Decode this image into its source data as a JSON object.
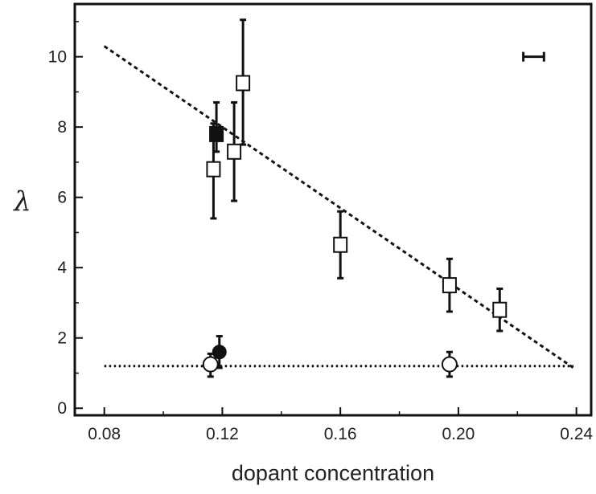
{
  "chart_data": {
    "type": "scatter",
    "title": "",
    "xlabel": "dopant concentration",
    "ylabel": "λ",
    "xlim": [
      0.07,
      0.245
    ],
    "ylim": [
      -0.2,
      11.5
    ],
    "xticks": [
      "0.08",
      "0.12",
      "0.16",
      "0.20",
      "0.24"
    ],
    "yticks": [
      "0",
      "2",
      "4",
      "6",
      "8",
      "10"
    ],
    "grid": false,
    "series": [
      {
        "marker": "open-square",
        "points": [
          {
            "x": 0.117,
            "y": 6.8,
            "ylow": 5.4,
            "yhigh": 8.1
          },
          {
            "x": 0.124,
            "y": 7.3,
            "ylow": 5.9,
            "yhigh": 8.7
          },
          {
            "x": 0.127,
            "y": 9.25,
            "ylow": 7.5,
            "yhigh": 11.05
          },
          {
            "x": 0.16,
            "y": 4.65,
            "ylow": 3.7,
            "yhigh": 5.6
          },
          {
            "x": 0.197,
            "y": 3.5,
            "ylow": 2.75,
            "yhigh": 4.25
          },
          {
            "x": 0.214,
            "y": 2.8,
            "ylow": 2.2,
            "yhigh": 3.4
          }
        ]
      },
      {
        "marker": "filled-square",
        "points": [
          {
            "x": 0.118,
            "y": 7.8,
            "ylow": 7.3,
            "yhigh": 8.7
          }
        ]
      },
      {
        "marker": "open-circle",
        "points": [
          {
            "x": 0.116,
            "y": 1.25,
            "ylow": 0.9,
            "yhigh": 1.55
          },
          {
            "x": 0.197,
            "y": 1.25,
            "ylow": 0.9,
            "yhigh": 1.6
          }
        ]
      },
      {
        "marker": "filled-circle",
        "points": [
          {
            "x": 0.119,
            "y": 1.6,
            "ylow": 1.15,
            "yhigh": 2.05
          }
        ]
      }
    ],
    "fit_lines": [
      {
        "style": "dashed",
        "x": [
          0.08,
          0.239
        ],
        "y": [
          10.3,
          1.15
        ]
      },
      {
        "style": "dotted",
        "x": [
          0.08,
          0.239
        ],
        "y": [
          1.2,
          1.2
        ]
      }
    ],
    "x_error_bar_key": {
      "x": [
        0.222,
        0.229
      ],
      "y": 10.0
    }
  }
}
